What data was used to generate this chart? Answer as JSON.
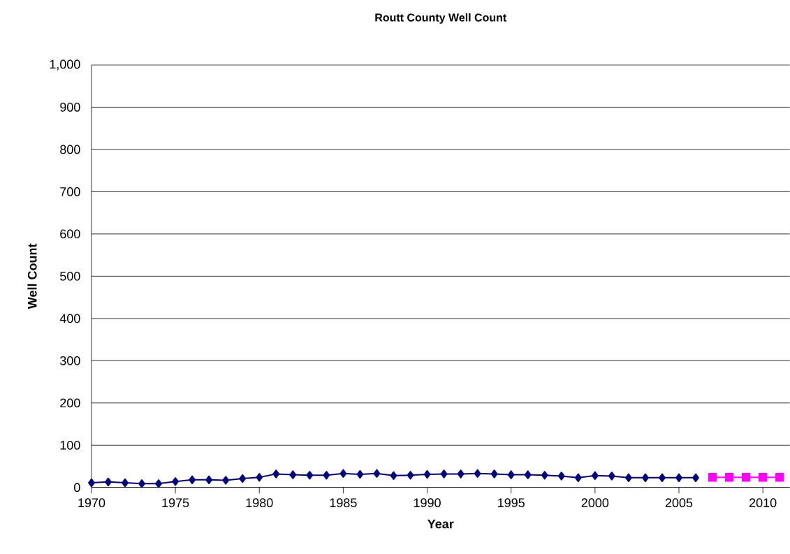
{
  "chart_data": {
    "type": "line",
    "title": "Routt County Well Count",
    "xlabel": "Year",
    "ylabel": "Well Count",
    "series": [
      {
        "color": "#000080",
        "marker": "diamond",
        "x": [
          1970,
          1971,
          1972,
          1973,
          1974,
          1975,
          1976,
          1977,
          1978,
          1979,
          1980,
          1981,
          1982,
          1983,
          1984,
          1985,
          1986,
          1987,
          1988,
          1989,
          1990,
          1991,
          1992,
          1993,
          1994,
          1995,
          1996,
          1997,
          1998,
          1999,
          2000,
          2001,
          2002,
          2003,
          2004,
          2005,
          2006
        ],
        "values": [
          11,
          13,
          11,
          9,
          9,
          14,
          18,
          18,
          17,
          21,
          24,
          32,
          30,
          29,
          29,
          33,
          31,
          33,
          28,
          29,
          31,
          32,
          32,
          33,
          32,
          30,
          30,
          29,
          27,
          23,
          28,
          27,
          23,
          23,
          23,
          23,
          23
        ]
      },
      {
        "color": "#ff00ff",
        "marker": "square",
        "x": [
          2007,
          2008,
          2009,
          2010,
          2011
        ],
        "values": [
          24,
          24,
          24,
          24,
          24
        ]
      }
    ],
    "xlim": [
      1970,
      2011.6
    ],
    "ylim": [
      0,
      1000
    ],
    "xticks": [
      1970,
      1975,
      1980,
      1985,
      1990,
      1995,
      2000,
      2005,
      2010
    ],
    "yticks": [
      0,
      100,
      200,
      300,
      400,
      500,
      600,
      700,
      800,
      900,
      {
        "value": 1000,
        "label": "1,000"
      }
    ],
    "grid": "y",
    "line_style": "solid"
  }
}
